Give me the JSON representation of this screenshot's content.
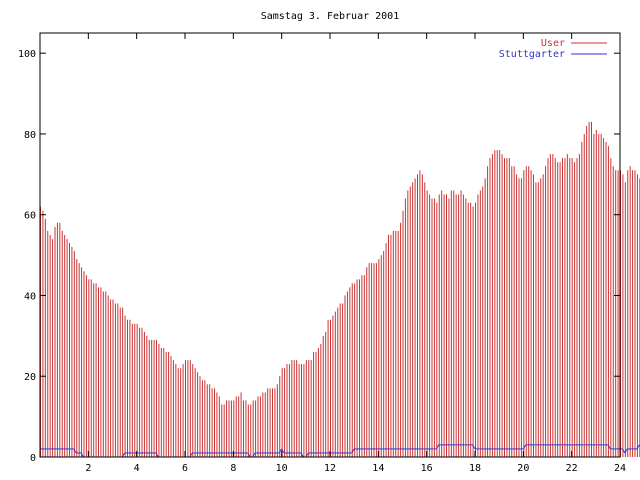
{
  "chart_data": {
    "type": "bar",
    "title": "Samstag 3. Februar 2001",
    "xlabel": "",
    "ylabel": "",
    "xlim": [
      0,
      24
    ],
    "ylim": [
      0,
      105
    ],
    "x_ticks": [
      2,
      4,
      6,
      8,
      10,
      12,
      14,
      16,
      18,
      20,
      22,
      24
    ],
    "y_ticks": [
      0,
      20,
      40,
      60,
      80,
      100
    ],
    "grid": false,
    "legend_position": "top-right",
    "x_step_hours": 0.1,
    "series": [
      {
        "name": "User",
        "style": "impulses",
        "color": "#cc3333",
        "values": [
          62,
          61,
          59,
          56,
          55,
          54,
          57,
          58,
          58,
          56,
          55,
          54,
          53,
          52,
          51,
          49,
          48,
          47,
          46,
          45,
          44,
          44,
          43,
          43,
          42,
          42,
          41,
          41,
          40,
          39,
          39,
          38,
          38,
          37,
          37,
          35,
          34,
          34,
          33,
          33,
          33,
          32,
          32,
          31,
          30,
          29,
          29,
          29,
          29,
          28,
          27,
          27,
          26,
          26,
          25,
          24,
          23,
          22,
          22,
          23,
          24,
          24,
          24,
          23,
          22,
          21,
          20,
          19,
          19,
          18,
          18,
          17,
          17,
          16,
          15,
          13,
          13,
          14,
          14,
          14,
          14,
          15,
          15,
          16,
          14,
          14,
          13,
          13,
          14,
          14,
          15,
          15,
          16,
          16,
          17,
          17,
          17,
          17,
          18,
          20,
          22,
          22,
          23,
          23,
          24,
          24,
          24,
          23,
          23,
          23,
          24,
          24,
          24,
          26,
          26,
          27,
          28,
          30,
          31,
          34,
          34,
          35,
          36,
          37,
          38,
          38,
          40,
          41,
          42,
          43,
          43,
          44,
          44,
          45,
          45,
          47,
          48,
          48,
          48,
          48,
          49,
          50,
          51,
          53,
          55,
          55,
          56,
          56,
          56,
          58,
          61,
          64,
          66,
          67,
          68,
          69,
          70,
          71,
          70,
          68,
          66,
          65,
          64,
          64,
          63,
          65,
          66,
          65,
          65,
          64,
          66,
          66,
          65,
          65,
          66,
          65,
          64,
          63,
          63,
          62,
          63,
          65,
          66,
          67,
          69,
          72,
          74,
          75,
          76,
          76,
          76,
          75,
          74,
          74,
          74,
          72,
          72,
          70,
          69,
          69,
          71,
          72,
          72,
          71,
          70,
          68,
          68,
          69,
          70,
          72,
          74,
          75,
          75,
          74,
          73,
          73,
          74,
          74,
          75,
          74,
          74,
          73,
          74,
          75,
          78,
          80,
          82,
          83,
          83,
          80,
          81,
          80,
          80,
          79,
          78,
          77,
          74,
          72,
          71,
          71,
          71,
          70,
          68,
          71,
          72,
          71,
          71,
          70,
          69,
          68,
          67,
          67,
          68,
          70,
          71,
          70,
          69,
          68,
          68,
          69,
          70,
          70,
          69,
          67,
          67,
          67,
          68,
          68,
          68,
          68,
          67,
          69,
          66,
          66
        ]
      },
      {
        "name": "Stuttgarter",
        "style": "line",
        "color": "#3333cc",
        "values": [
          2,
          2,
          2,
          2,
          2,
          2,
          2,
          2,
          2,
          2,
          2,
          2,
          2,
          2,
          2,
          1,
          1,
          1,
          0,
          0,
          0,
          0,
          0,
          0,
          0,
          0,
          0,
          0,
          0,
          0,
          0,
          0,
          0,
          0,
          0,
          1,
          1,
          1,
          1,
          1,
          1,
          1,
          1,
          1,
          1,
          1,
          1,
          1,
          1,
          0,
          0,
          0,
          0,
          0,
          0,
          0,
          0,
          0,
          0,
          0,
          0,
          0,
          0,
          1,
          1,
          1,
          1,
          1,
          1,
          1,
          1,
          1,
          1,
          1,
          1,
          1,
          1,
          1,
          1,
          1,
          1,
          1,
          1,
          1,
          1,
          1,
          1,
          0,
          0,
          1,
          1,
          1,
          1,
          1,
          1,
          1,
          1,
          1,
          1,
          1,
          2,
          1,
          1,
          1,
          1,
          1,
          1,
          1,
          1,
          0,
          0,
          1,
          1,
          1,
          1,
          1,
          1,
          1,
          1,
          1,
          1,
          1,
          1,
          1,
          1,
          1,
          1,
          1,
          1,
          1,
          2,
          2,
          2,
          2,
          2,
          2,
          2,
          2,
          2,
          2,
          2,
          2,
          2,
          2,
          2,
          2,
          2,
          2,
          2,
          2,
          2,
          2,
          2,
          2,
          2,
          2,
          2,
          2,
          2,
          2,
          2,
          2,
          2,
          2,
          2,
          3,
          3,
          3,
          3,
          3,
          3,
          3,
          3,
          3,
          3,
          3,
          3,
          3,
          3,
          3,
          2,
          2,
          2,
          2,
          2,
          2,
          2,
          2,
          2,
          2,
          2,
          2,
          2,
          2,
          2,
          2,
          2,
          2,
          2,
          2,
          2,
          3,
          3,
          3,
          3,
          3,
          3,
          3,
          3,
          3,
          3,
          3,
          3,
          3,
          3,
          3,
          3,
          3,
          3,
          3,
          3,
          3,
          3,
          3,
          3,
          3,
          3,
          3,
          3,
          3,
          3,
          3,
          3,
          3,
          3,
          3,
          2,
          2,
          2,
          2,
          2,
          2,
          1,
          2,
          2,
          2,
          2,
          2,
          3,
          2,
          1,
          1,
          1,
          1,
          1,
          1,
          1,
          1,
          1,
          1,
          1,
          1,
          1,
          1,
          1,
          1,
          1,
          1,
          1,
          1,
          0
        ]
      }
    ]
  }
}
